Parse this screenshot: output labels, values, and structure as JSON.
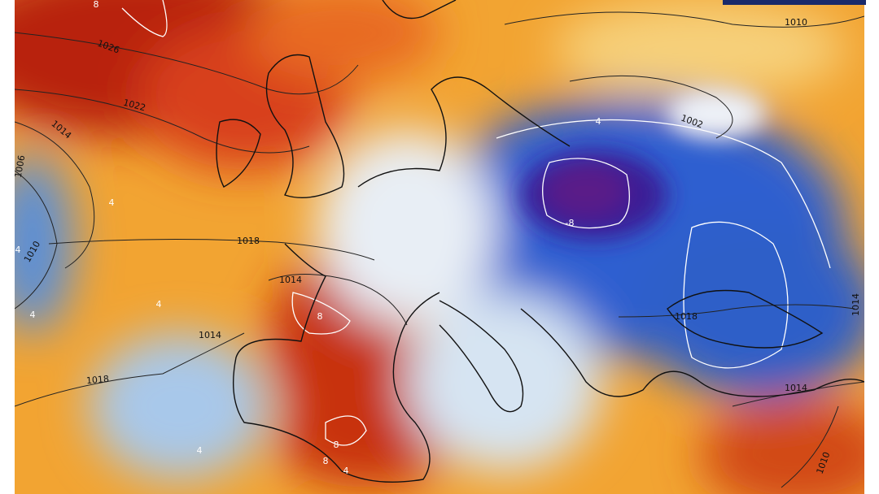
{
  "map": {
    "isobar_labels": [
      "1010",
      "1026",
      "1022",
      "1014",
      "1006",
      "1010",
      "1018",
      "1014",
      "1014",
      "1018",
      "1002",
      "1018",
      "1014",
      "1014",
      "1010"
    ],
    "isotherm_labels": [
      "8",
      "4",
      "-8",
      "8",
      "4",
      "4",
      "4",
      "8",
      "8",
      "4",
      "4",
      "4"
    ]
  }
}
